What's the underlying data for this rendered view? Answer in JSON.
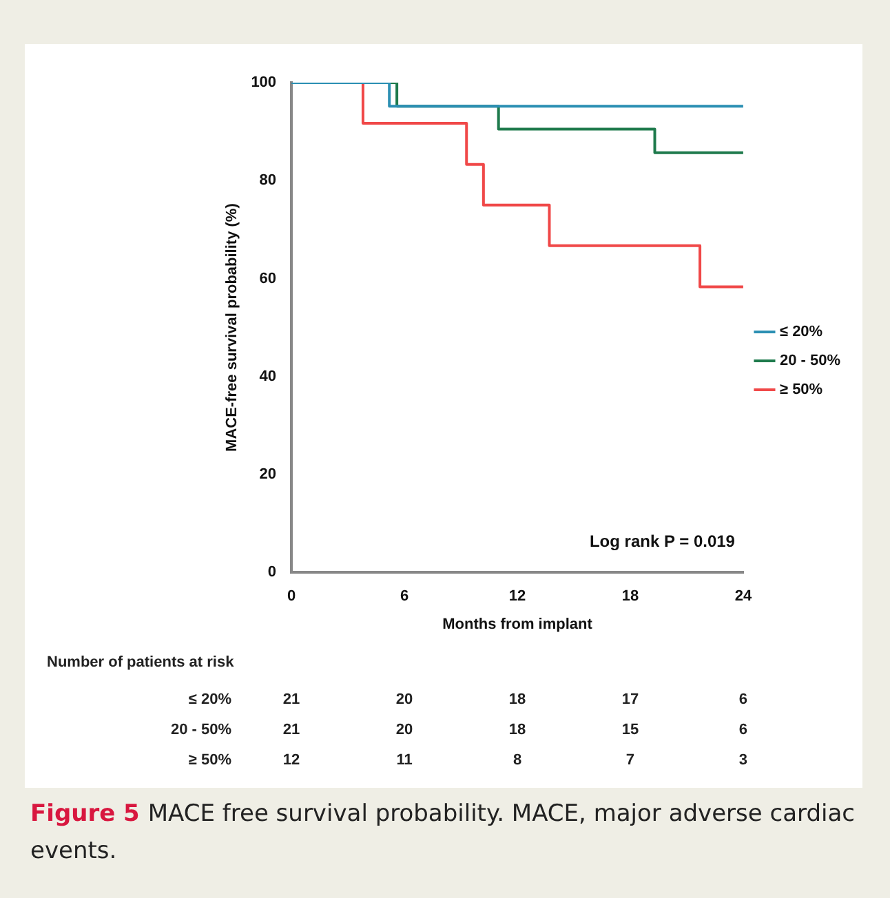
{
  "chart_data": {
    "type": "step",
    "xlabel": "Months from implant",
    "ylabel": "MACE-free survival probability (%)",
    "series": [
      {
        "name": "≤ 20%",
        "color": "#2b8fb3",
        "x": [
          0,
          5.2,
          24
        ],
        "values": [
          100,
          95.2,
          95.2
        ]
      },
      {
        "name": "20 - 50%",
        "color": "#1e7a4c",
        "x": [
          0,
          5.6,
          11,
          19.3,
          24
        ],
        "values": [
          100,
          95.2,
          90.5,
          85.7,
          85.7
        ]
      },
      {
        "name": "≥ 50%",
        "color": "#f04848",
        "x": [
          0,
          3.8,
          9.3,
          10.2,
          13.7,
          21.7,
          24
        ],
        "values": [
          100,
          91.7,
          83.3,
          75,
          66.7,
          58.3,
          58.3
        ]
      }
    ],
    "xlim": [
      0,
      24
    ],
    "xticks": [
      0,
      6,
      12,
      18,
      24
    ],
    "ylim": [
      0,
      100
    ],
    "yticks": [
      0,
      20,
      40,
      60,
      80,
      100
    ],
    "grid": false,
    "legend": "right",
    "marker": "none",
    "line_style": "solid",
    "annotations": [
      "Log rank P = 0.019",
      "Number of patients at risk",
      "≤ 20%",
      "21",
      "20",
      "18",
      "17",
      "6",
      "20 - 50%",
      "21",
      "20",
      "18",
      "15",
      "6",
      "≥ 50%",
      "12",
      "11",
      "8",
      "7",
      "3",
      "Figure 5",
      "MACE free survival probability. MACE, major adverse cardiac events."
    ]
  }
}
